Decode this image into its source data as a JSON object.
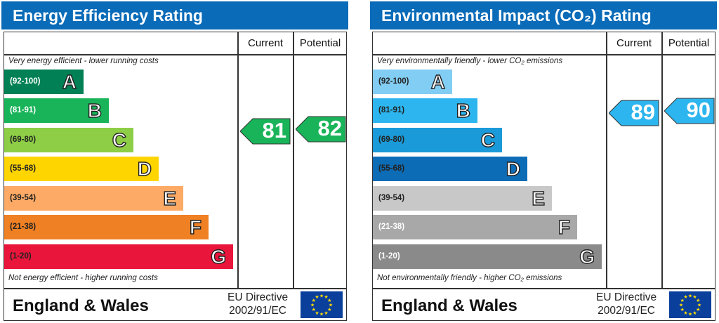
{
  "chart_data": [
    {
      "type": "bar",
      "title": "Energy Efficiency Rating",
      "columns": [
        "Current",
        "Potential"
      ],
      "top_note": "Very energy efficient - lower running costs",
      "bottom_note": "Not energy efficient - higher running costs",
      "bands": [
        {
          "range": "(92-100)",
          "letter": "A",
          "color": "#008054",
          "text_color": "#ffffff"
        },
        {
          "range": "(81-91)",
          "letter": "B",
          "color": "#19b459",
          "text_color": "#ffffff"
        },
        {
          "range": "(69-80)",
          "letter": "C",
          "color": "#8dce46",
          "text_color": "#222222"
        },
        {
          "range": "(55-68)",
          "letter": "D",
          "color": "#ffd500",
          "text_color": "#222222"
        },
        {
          "range": "(39-54)",
          "letter": "E",
          "color": "#fcaa65",
          "text_color": "#222222"
        },
        {
          "range": "(21-38)",
          "letter": "F",
          "color": "#ef8023",
          "text_color": "#222222"
        },
        {
          "range": "(1-20)",
          "letter": "G",
          "color": "#e9153b",
          "text_color": "#222222"
        }
      ],
      "current": {
        "value": 81,
        "color": "#19b459"
      },
      "potential": {
        "value": 82,
        "color": "#19b459"
      },
      "footer": {
        "region": "England & Wales",
        "directive_line1": "EU Directive",
        "directive_line2": "2002/91/EC"
      }
    },
    {
      "type": "bar",
      "title": "Environmental Impact (CO₂) Rating",
      "columns": [
        "Current",
        "Potential"
      ],
      "top_note": "Very environmentally friendly - lower CO₂ emissions",
      "bottom_note": "Not environmentally friendly - higher CO₂ emissions",
      "bands": [
        {
          "range": "(92-100)",
          "letter": "A",
          "color": "#82cdf3",
          "text_color": "#222222"
        },
        {
          "range": "(81-91)",
          "letter": "B",
          "color": "#2cb5ee",
          "text_color": "#222222"
        },
        {
          "range": "(69-80)",
          "letter": "C",
          "color": "#1a9ad8",
          "text_color": "#222222"
        },
        {
          "range": "(55-68)",
          "letter": "D",
          "color": "#0d6cb6",
          "text_color": "#222222"
        },
        {
          "range": "(39-54)",
          "letter": "E",
          "color": "#c8c8c8",
          "text_color": "#222222"
        },
        {
          "range": "(21-38)",
          "letter": "F",
          "color": "#a8a8a8",
          "text_color": "#ffffff"
        },
        {
          "range": "(1-20)",
          "letter": "G",
          "color": "#8a8a8a",
          "text_color": "#ffffff"
        }
      ],
      "current": {
        "value": 89,
        "color": "#2cb5ee"
      },
      "potential": {
        "value": 90,
        "color": "#2cb5ee"
      },
      "footer": {
        "region": "England & Wales",
        "directive_line1": "EU Directive",
        "directive_line2": "2002/91/EC"
      }
    }
  ]
}
